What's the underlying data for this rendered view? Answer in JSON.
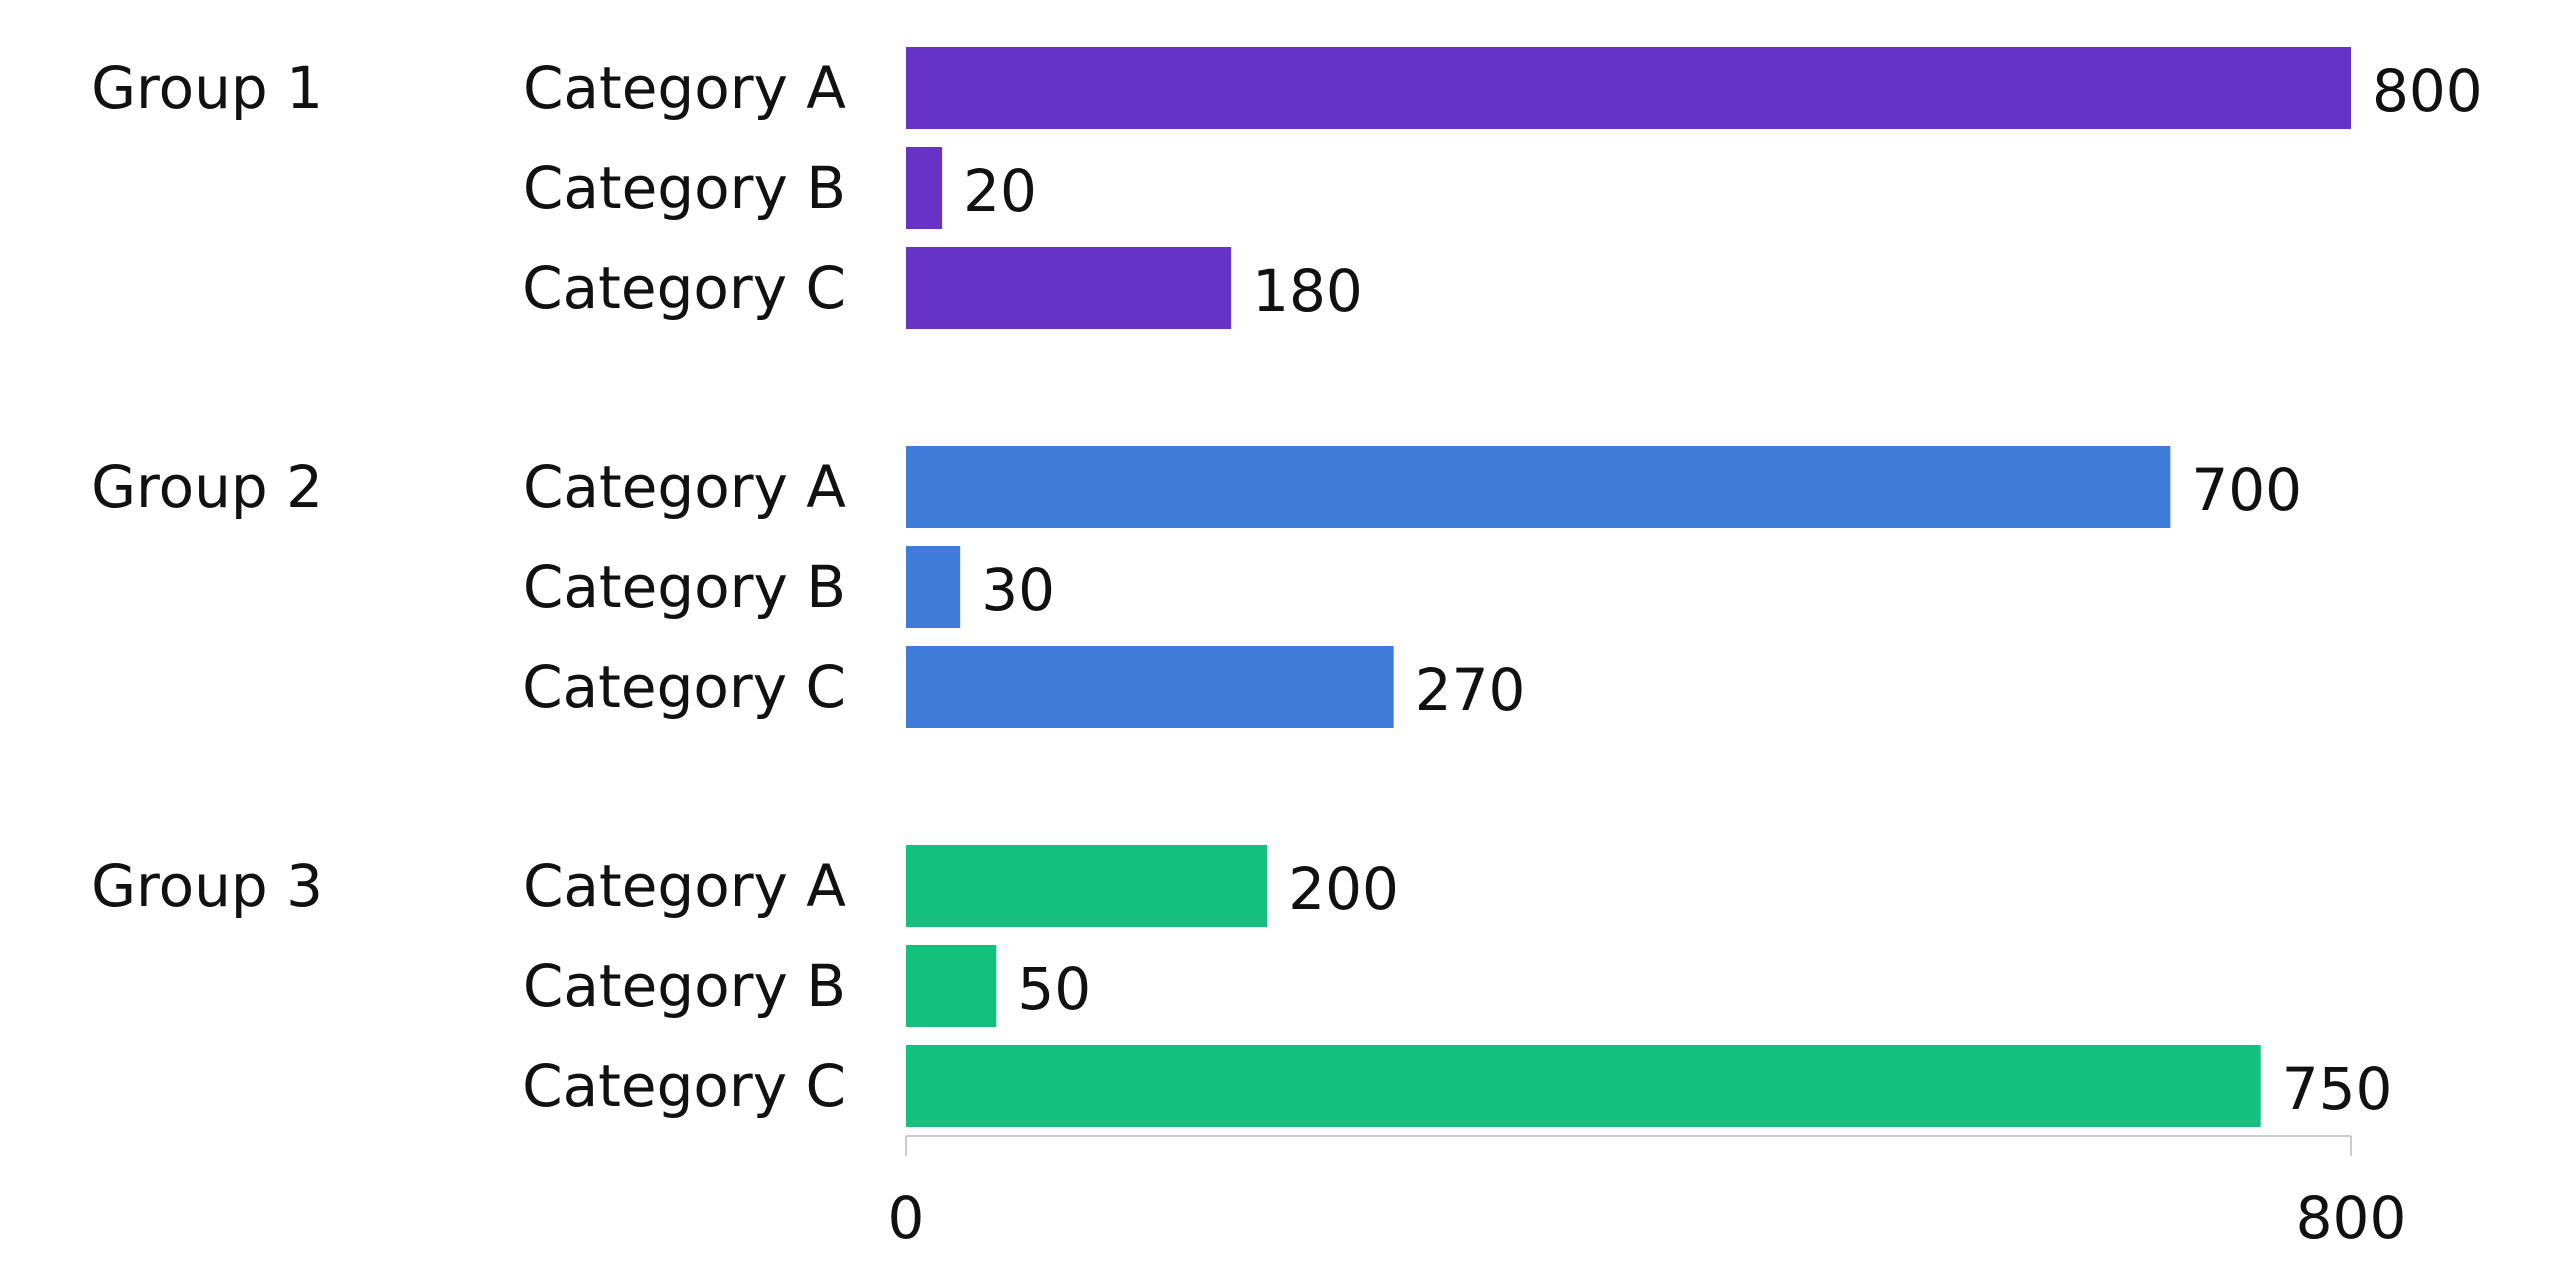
{
  "chart_data": {
    "type": "bar",
    "orientation": "horizontal",
    "categories": [
      "Category A",
      "Category B",
      "Category C"
    ],
    "series": [
      {
        "name": "Group 1",
        "color": "#6633c6",
        "values": [
          800,
          20,
          180
        ]
      },
      {
        "name": "Group 2",
        "color": "#3f7bd8",
        "values": [
          700,
          30,
          270
        ]
      },
      {
        "name": "Group 3",
        "color": "#15c07f",
        "values": [
          200,
          50,
          750
        ]
      }
    ],
    "xlim": [
      0,
      800
    ],
    "xticks": [
      0,
      800
    ],
    "grid": false
  }
}
